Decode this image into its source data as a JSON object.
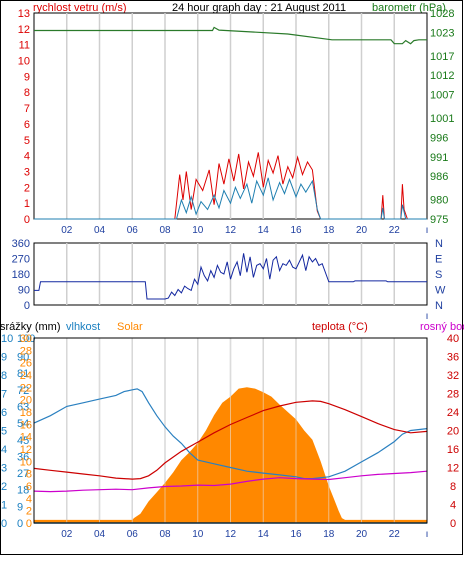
{
  "chart_data": [
    {
      "type": "line",
      "title": "24 hour graph day : 21 August 2011",
      "left_axis_label": "rychlost vetru (m/s)",
      "right_axis_label": "barometr (hPa)",
      "left_ticks": [
        "0",
        "1",
        "2",
        "3",
        "4",
        "5",
        "6",
        "7",
        "8",
        "9",
        "10",
        "11",
        "12",
        "13"
      ],
      "right_ticks": [
        "975",
        "980",
        "986",
        "991",
        "996",
        "1001",
        "1007",
        "1012",
        "1017",
        "1023",
        "1028"
      ],
      "x_ticks": [
        "02",
        "04",
        "06",
        "08",
        "10",
        "12",
        "14",
        "16",
        "18",
        "20",
        "22"
      ],
      "x_range": [
        0,
        24
      ],
      "ylim_left": [
        0,
        13
      ],
      "ylim_right": [
        975,
        1028
      ],
      "colors": {
        "wind_gust": "#dd0000",
        "wind_avg": "#1f7fb0",
        "pressure": "#2a7a2a",
        "left_axis": "#dd0000",
        "right_axis": "#1a7a1a"
      },
      "series": [
        {
          "key": "pressure",
          "x": [
            0,
            10.9,
            11.0,
            11.3,
            15.5,
            18.2,
            21.8,
            22.0,
            22.5,
            22.7,
            23.0,
            23.2,
            23.5,
            24
          ],
          "y": [
            1023.5,
            1023.5,
            1024.3,
            1023.6,
            1022.6,
            1021.1,
            1021.1,
            1020.1,
            1020.1,
            1020.9,
            1020.1,
            1020.9,
            1021.1,
            1021.1
          ]
        },
        {
          "key": "wind_gust",
          "x": [
            0,
            8.6,
            8.9,
            9.1,
            9.3,
            9.6,
            9.9,
            10.3,
            10.7,
            11.0,
            11.3,
            11.6,
            11.9,
            12.2,
            12.5,
            12.8,
            13.1,
            13.4,
            13.7,
            14.0,
            14.3,
            14.6,
            14.9,
            15.2,
            15.5,
            15.8,
            16.1,
            16.4,
            16.7,
            17.0,
            17.3,
            17.5,
            21.2,
            21.3,
            21.4,
            22.4,
            22.5,
            22.6,
            22.8,
            24
          ],
          "y": [
            0,
            0,
            2.8,
            1.2,
            3.0,
            0.6,
            2.5,
            1.8,
            3.1,
            0.9,
            3.5,
            2.2,
            3.8,
            2.4,
            4.1,
            1.9,
            3.6,
            2.7,
            4.2,
            2.0,
            3.7,
            2.9,
            4.0,
            2.2,
            3.3,
            2.6,
            3.9,
            2.8,
            3.6,
            3.1,
            0.5,
            0,
            0,
            1.5,
            0,
            0,
            2.2,
            0.6,
            0,
            0
          ]
        },
        {
          "key": "wind_avg",
          "x": [
            0,
            8.7,
            9.0,
            9.3,
            9.6,
            9.9,
            10.2,
            10.6,
            11.0,
            11.3,
            11.6,
            12.0,
            12.3,
            12.6,
            13.0,
            13.3,
            13.6,
            14.0,
            14.3,
            14.6,
            15.0,
            15.3,
            15.6,
            16.0,
            16.3,
            16.6,
            17.0,
            17.3,
            17.5,
            21.2,
            21.3,
            21.4,
            22.4,
            22.5,
            22.7,
            24
          ],
          "y": [
            0,
            0,
            1.2,
            0.4,
            1.4,
            0.3,
            1.1,
            0.6,
            1.5,
            0.7,
            1.8,
            1.0,
            2.0,
            1.3,
            2.2,
            1.0,
            2.4,
            1.5,
            2.6,
            1.2,
            2.3,
            1.6,
            2.5,
            1.4,
            2.2,
            1.7,
            2.4,
            0.6,
            0,
            0,
            0.7,
            0,
            0,
            0.9,
            0,
            0
          ]
        }
      ]
    },
    {
      "type": "line",
      "left_ticks": [
        "0",
        "90",
        "180",
        "270",
        "360"
      ],
      "right_ticks": [
        "N",
        "W",
        "S",
        "E",
        "N"
      ],
      "ylim": [
        0,
        360
      ],
      "series": [
        {
          "key": "wind_direction",
          "x": [
            0,
            0.3,
            0.4,
            6.8,
            6.9,
            8.0,
            8.2,
            8.4,
            8.6,
            8.8,
            9.0,
            9.2,
            9.4,
            9.6,
            9.8,
            10.0,
            10.2,
            10.4,
            10.6,
            10.8,
            11.0,
            11.2,
            11.4,
            11.6,
            11.8,
            12.0,
            12.2,
            12.4,
            12.6,
            12.8,
            13.0,
            13.2,
            13.4,
            13.6,
            13.8,
            14.0,
            14.2,
            14.4,
            14.6,
            14.8,
            15.0,
            15.2,
            15.4,
            15.6,
            15.8,
            16.0,
            16.2,
            16.4,
            16.6,
            16.8,
            17.0,
            17.2,
            17.4,
            17.6,
            18.0,
            19.5,
            19.6,
            21.5,
            21.6,
            24
          ],
          "y": [
            85,
            85,
            135,
            135,
            35,
            35,
            40,
            75,
            55,
            90,
            70,
            110,
            95,
            85,
            150,
            120,
            220,
            170,
            140,
            200,
            160,
            230,
            190,
            180,
            250,
            150,
            210,
            250,
            170,
            300,
            190,
            280,
            160,
            230,
            240,
            210,
            270,
            150,
            260,
            280,
            200,
            240,
            230,
            260,
            220,
            210,
            250,
            290,
            200,
            280,
            250,
            270,
            230,
            240,
            135,
            135,
            140,
            140,
            135,
            135
          ]
        }
      ]
    },
    {
      "type": "line",
      "labels": {
        "rain": "srážky (mm)",
        "humidity": "vlhkost",
        "solar": "Solar",
        "temperature": "teplota (°C)",
        "dew": "rosný bod"
      },
      "rain_ticks": [
        "0",
        "1",
        "2",
        "3",
        "4",
        "5",
        "6",
        "7",
        "8",
        "9",
        "10"
      ],
      "humidity_ticks": [
        "0",
        "9",
        "18",
        "27",
        "36",
        "45",
        "54",
        "63",
        "72",
        "81",
        "90",
        "100"
      ],
      "solar_ticks": [
        "0",
        "2",
        "4",
        "6",
        "8",
        "10",
        "12",
        "14",
        "16",
        "18",
        "20",
        "22",
        "24",
        "26",
        "28",
        "30"
      ],
      "temp_ticks": [
        "0",
        "4",
        "8",
        "12",
        "16",
        "20",
        "24",
        "28",
        "32",
        "36",
        "40"
      ],
      "x_ticks": [
        "02",
        "04",
        "06",
        "08",
        "10",
        "12",
        "14",
        "16",
        "18",
        "20",
        "22"
      ],
      "colors": {
        "solar": "#ff8800",
        "humidity": "#2a80c0",
        "temperature": "#cc0000",
        "dew": "#cc00cc",
        "rain": "#1a7fc0"
      },
      "series": [
        {
          "key": "solar",
          "x": [
            0,
            6.0,
            6.1,
            6.5,
            7.0,
            7.5,
            8.0,
            8.5,
            9.0,
            9.5,
            10.0,
            10.5,
            11.0,
            11.5,
            12.0,
            12.5,
            13.0,
            13.5,
            14.0,
            14.5,
            15.0,
            15.5,
            16.0,
            16.5,
            17.0,
            17.5,
            18.0,
            18.3,
            18.6,
            18.8,
            19.0,
            24
          ],
          "y": [
            0.5,
            0.5,
            0.8,
            1.5,
            3.5,
            5,
            6.5,
            8.2,
            10.2,
            11.5,
            13,
            15,
            17.5,
            19.5,
            20.5,
            21.8,
            22,
            21.8,
            21.2,
            20.5,
            19.2,
            18,
            16.8,
            15,
            13.5,
            10,
            6,
            4,
            2,
            0.8,
            0.5,
            0.5
          ]
        },
        {
          "key": "humidity",
          "x": [
            0,
            1,
            2,
            3,
            4,
            5,
            5.5,
            6,
            6.3,
            6.6,
            7,
            7.5,
            8,
            8.5,
            9,
            9.5,
            10,
            10.5,
            11,
            12,
            13,
            14,
            15,
            16,
            16.5,
            17,
            18,
            19,
            20,
            21,
            22,
            22.5,
            23,
            24
          ],
          "y": [
            54,
            58,
            63,
            65,
            67,
            69,
            71,
            72,
            72.5,
            71,
            65,
            58,
            52,
            47,
            43,
            38,
            34,
            33,
            32,
            30,
            28,
            27,
            26,
            25,
            24,
            24,
            25,
            28,
            33,
            38,
            44,
            48,
            50,
            51
          ]
        },
        {
          "key": "temperature",
          "x": [
            0,
            1,
            2,
            3,
            4,
            5,
            6,
            6.5,
            7,
            7.5,
            8,
            9,
            10,
            11,
            12,
            13,
            14,
            15,
            16,
            17,
            17.5,
            18,
            19,
            20,
            21,
            22,
            23,
            24
          ],
          "y": [
            11.8,
            11.4,
            11.0,
            10.6,
            10.2,
            9.7,
            9.5,
            9.6,
            10.2,
            11.4,
            13,
            15.5,
            17.5,
            19.5,
            21.3,
            22.8,
            24.3,
            25.3,
            26.1,
            26.4,
            26.3,
            25.8,
            24.5,
            23,
            21.5,
            20.2,
            19.5,
            19.8
          ]
        },
        {
          "key": "dew",
          "x": [
            0,
            1,
            2,
            3,
            4,
            5,
            6,
            7,
            8,
            9,
            10,
            11,
            12,
            13,
            14,
            15,
            16,
            17,
            18,
            19,
            20,
            21,
            22,
            23,
            24
          ],
          "y": [
            6.9,
            6.8,
            6.9,
            7.1,
            7.2,
            7.3,
            7.2,
            7.6,
            7.9,
            8.0,
            8.2,
            8.1,
            8.4,
            9.0,
            9.5,
            9.8,
            9.6,
            9.5,
            9.4,
            9.8,
            10.2,
            10.5,
            10.7,
            10.9,
            11.2
          ]
        },
        {
          "key": "rain",
          "x": [
            0,
            24
          ],
          "y": [
            0,
            0
          ]
        }
      ]
    }
  ]
}
